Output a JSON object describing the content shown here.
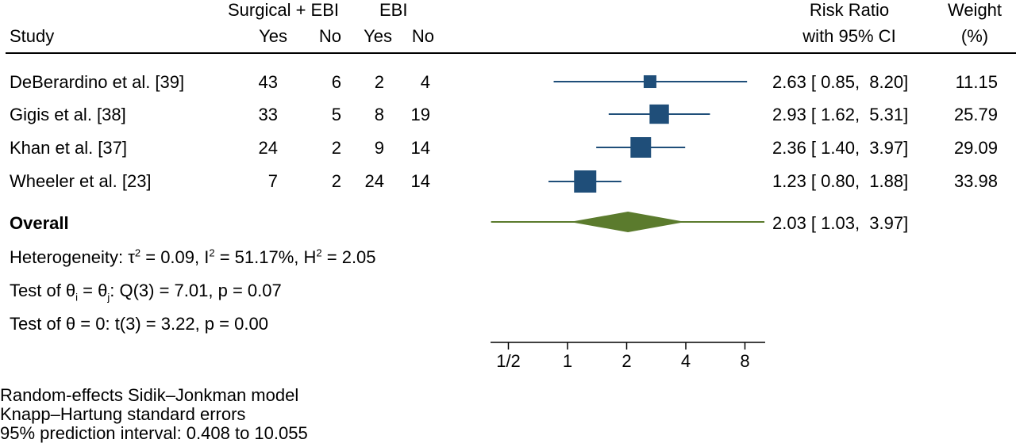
{
  "header": {
    "group1": "Surgical + EBI",
    "group2": "EBI",
    "study": "Study",
    "yes1": "Yes",
    "no1": "No",
    "yes2": "Yes",
    "no2": "No",
    "rr_line1": "Risk Ratio",
    "rr_line2": "with 95% CI",
    "weight_line1": "Weight",
    "weight_line2": "(%)"
  },
  "rows": [
    {
      "study": "DeBerardino et al. [39]",
      "yes1": "43",
      "no1": "6",
      "yes2": "2",
      "no2": "4",
      "ci": "2.63 [ 0.85,  8.20]",
      "weight": "11.15"
    },
    {
      "study": "Gigis et al. [38]",
      "yes1": "33",
      "no1": "5",
      "yes2": "8",
      "no2": "19",
      "ci": "2.93 [ 1.62,  5.31]",
      "weight": "25.79"
    },
    {
      "study": "Khan et al. [37]",
      "yes1": "24",
      "no1": "2",
      "yes2": "9",
      "no2": "14",
      "ci": "2.36 [ 1.40,  3.97]",
      "weight": "29.09"
    },
    {
      "study": "Wheeler et al. [23]",
      "yes1": "7",
      "no1": "2",
      "yes2": "24",
      "no2": "14",
      "ci": "1.23 [ 0.80,  1.88]",
      "weight": "33.98"
    }
  ],
  "overall": {
    "label": "Overall",
    "ci": "2.03 [ 1.03,  3.97]"
  },
  "stats": {
    "het_a": "Heterogeneity: τ",
    "het_a_sup": "2",
    "het_b": " = 0.09, I",
    "het_b_sup": "2",
    "het_c": " = 51.17%, H",
    "het_c_sup": "2",
    "het_d": " = 2.05",
    "test1_a": "Test of θ",
    "test1_sub1": "i",
    "test1_b": " = θ",
    "test1_sub2": "j",
    "test1_c": ": Q(3) = 7.01, p = 0.07",
    "test2": "Test of θ = 0: t(3) = 3.22, p = 0.00"
  },
  "footnotes": [
    "Random-effects Sidik–Jonkman model",
    "Knapp–Hartung standard errors",
    "95% prediction interval: 0.408 to 10.055"
  ],
  "colors": {
    "study_marker": "#1f4e79",
    "overall_diamond": "#5b7b2d",
    "axis": "#000000"
  },
  "chart_data": {
    "type": "forest",
    "x_scale": "log",
    "xlim": [
      0.4,
      10
    ],
    "xticks": [
      0.5,
      1,
      2,
      4,
      8
    ],
    "xtick_labels": [
      "1/2",
      "1",
      "2",
      "4",
      "8"
    ],
    "studies": [
      {
        "name": "DeBerardino et al. [39]",
        "estimate": 2.63,
        "lower": 0.85,
        "upper": 8.2,
        "weight": 11.15
      },
      {
        "name": "Gigis et al. [38]",
        "estimate": 2.93,
        "lower": 1.62,
        "upper": 5.31,
        "weight": 25.79
      },
      {
        "name": "Khan et al. [37]",
        "estimate": 2.36,
        "lower": 1.4,
        "upper": 3.97,
        "weight": 29.09
      },
      {
        "name": "Wheeler et al. [23]",
        "estimate": 1.23,
        "lower": 0.8,
        "upper": 1.88,
        "weight": 33.98
      }
    ],
    "overall": {
      "estimate": 2.03,
      "lower": 1.03,
      "upper": 3.97,
      "prediction_interval": [
        0.408,
        10.055
      ]
    }
  }
}
